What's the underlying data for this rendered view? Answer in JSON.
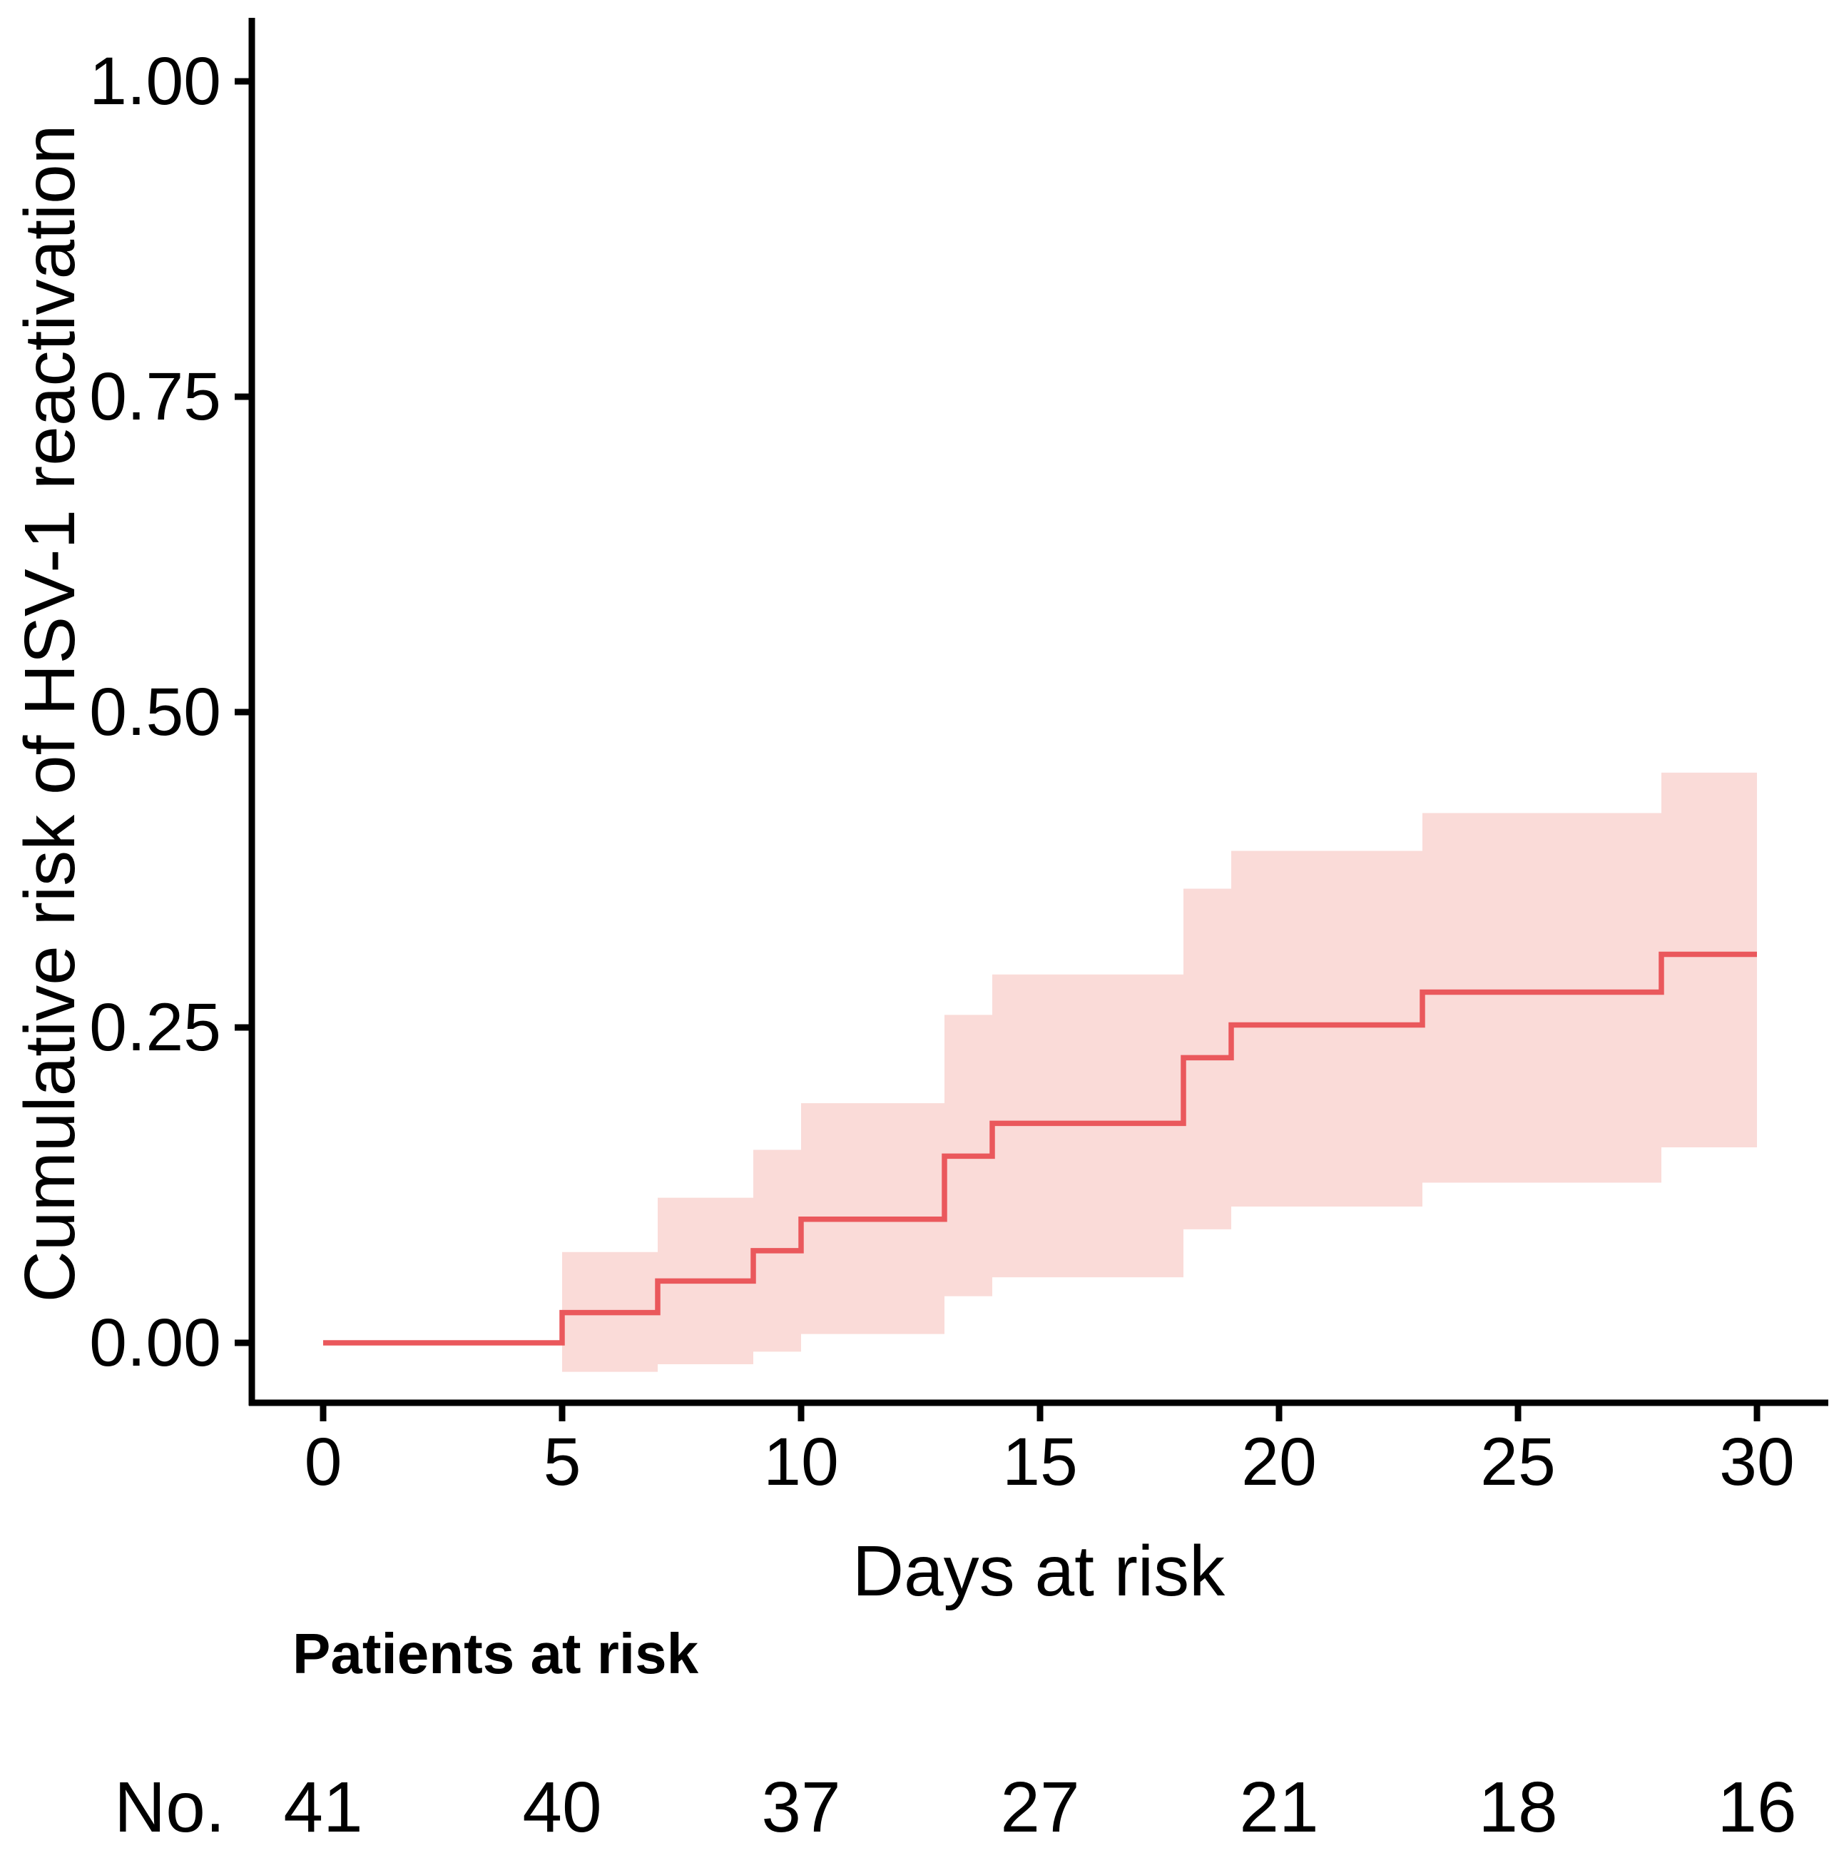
{
  "chart_data": {
    "type": "line",
    "subtype": "kaplan-meier-cumulative-incidence-step",
    "title": "",
    "xlabel": "Days at risk",
    "ylabel": "Cumulative risk of HSV-1 reactivation",
    "xlim": [
      0,
      30
    ],
    "ylim": [
      0,
      1
    ],
    "grid": "off",
    "legend": "none",
    "x_ticks": [
      {
        "value": 0,
        "label": "0"
      },
      {
        "value": 5,
        "label": "5"
      },
      {
        "value": 10,
        "label": "10"
      },
      {
        "value": 15,
        "label": "15"
      },
      {
        "value": 20,
        "label": "20"
      },
      {
        "value": 25,
        "label": "25"
      },
      {
        "value": 30,
        "label": "30"
      }
    ],
    "y_ticks": [
      {
        "value": 0.0,
        "label": "0.00"
      },
      {
        "value": 0.25,
        "label": "0.25"
      },
      {
        "value": 0.5,
        "label": "0.50"
      },
      {
        "value": 0.75,
        "label": "0.75"
      },
      {
        "value": 1.0,
        "label": "1.00"
      }
    ],
    "series": [
      {
        "name": "Cumulative risk of HSV-1 reactivation",
        "color": "#EA585C",
        "step_points": [
          [
            0,
            0.0
          ],
          [
            5,
            0.024
          ],
          [
            7,
            0.049
          ],
          [
            9,
            0.073
          ],
          [
            10,
            0.098
          ],
          [
            13,
            0.148
          ],
          [
            14,
            0.174
          ],
          [
            18,
            0.226
          ],
          [
            19,
            0.252
          ],
          [
            23,
            0.278
          ],
          [
            28,
            0.308
          ]
        ],
        "end_x": 30
      }
    ],
    "confidence_band": {
      "color": "#FADBD8",
      "segments": [
        {
          "from": 5,
          "to": 7,
          "lower": -0.023,
          "upper": 0.072
        },
        {
          "from": 7,
          "to": 9,
          "lower": -0.017,
          "upper": 0.115
        },
        {
          "from": 9,
          "to": 10,
          "lower": -0.007,
          "upper": 0.153
        },
        {
          "from": 10,
          "to": 13,
          "lower": 0.007,
          "upper": 0.19
        },
        {
          "from": 13,
          "to": 14,
          "lower": 0.037,
          "upper": 0.26
        },
        {
          "from": 14,
          "to": 18,
          "lower": 0.052,
          "upper": 0.292
        },
        {
          "from": 18,
          "to": 19,
          "lower": 0.09,
          "upper": 0.36
        },
        {
          "from": 19,
          "to": 23,
          "lower": 0.108,
          "upper": 0.39
        },
        {
          "from": 23,
          "to": 28,
          "lower": 0.127,
          "upper": 0.42
        },
        {
          "from": 28,
          "to": 30,
          "lower": 0.155,
          "upper": 0.452
        }
      ]
    }
  },
  "risk_table": {
    "title": "Patients at risk",
    "row_label": "No.",
    "days": [
      0,
      5,
      10,
      15,
      20,
      25,
      30
    ],
    "counts": [
      "41",
      "40",
      "37",
      "27",
      "21",
      "18",
      "16"
    ]
  }
}
